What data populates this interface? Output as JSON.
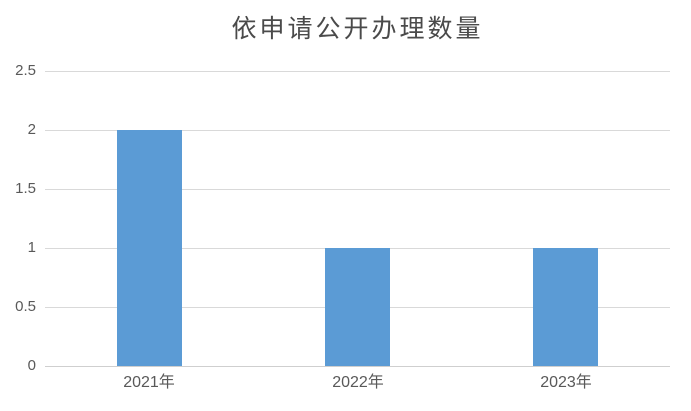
{
  "colors": {
    "background": "#FFFFFF",
    "bar": "#5B9BD5",
    "gridline": "#D9D9D9",
    "axis_line": "#CFCFCF",
    "tick_text": "#595959",
    "title_text": "#4A4A4A"
  },
  "chart_data": {
    "type": "bar",
    "title": "依申请公开办理数量",
    "categories": [
      "2021年",
      "2022年",
      "2023年"
    ],
    "values": [
      2,
      1,
      1
    ],
    "xlabel": "",
    "ylabel": "",
    "ylim": [
      0,
      2.5
    ],
    "y_ticks": [
      0,
      0.5,
      1,
      1.5,
      2,
      2.5
    ],
    "grid": true,
    "legend": false
  }
}
